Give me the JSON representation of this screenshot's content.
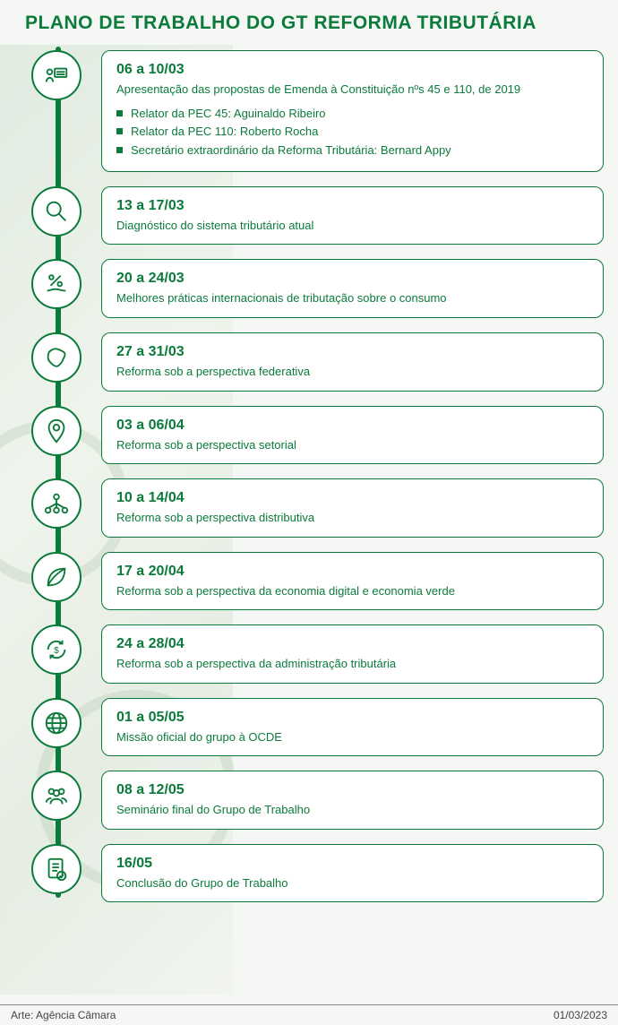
{
  "colors": {
    "primary": "#0b7a3b",
    "card_bg": "#ffffff",
    "card_border": "#0b7a3b",
    "spine": "#0b7a3b",
    "page_bg": "#f5f7f4",
    "bullet": "#0b7a3b",
    "footer_text": "#444444",
    "footer_rule": "#888888"
  },
  "title": "PLANO DE TRABALHO DO GT REFORMA TRIBUTÁRIA",
  "footer": {
    "credit": "Arte: Agência Câmara",
    "date": "01/03/2023"
  },
  "timeline": [
    {
      "icon": "presentation",
      "date": "06 a 10/03",
      "desc": "Apresentação das propostas de Emenda à Constituição nºs 45 e 110, de 2019",
      "bullets": [
        "Relator da PEC 45: Aguinaldo Ribeiro",
        "Relator da PEC 110: Roberto Rocha",
        "Secretário extraordinário da Reforma Tributária: Bernard Appy"
      ]
    },
    {
      "icon": "magnifier",
      "date": "13 a 17/03",
      "desc": "Diagnóstico do sistema tributário atual"
    },
    {
      "icon": "percent-hand",
      "date": "20 a 24/03",
      "desc": "Melhores práticas internacionais de tributação sobre o consumo"
    },
    {
      "icon": "brazil-map",
      "date": "27 a 31/03",
      "desc": "Reforma sob a perspectiva federativa"
    },
    {
      "icon": "pin",
      "date": "03 a 06/04",
      "desc": "Reforma sob a perspectiva setorial"
    },
    {
      "icon": "distribution",
      "date": "10 a 14/04",
      "desc": "Reforma sob a perspectiva distributiva"
    },
    {
      "icon": "leaf",
      "date": "17 a 20/04",
      "desc": "Reforma sob a perspectiva da economia digital e economia verde"
    },
    {
      "icon": "cycle-dollar",
      "date": "24 a 28/04",
      "desc": "Reforma sob a perspectiva da administração tributária"
    },
    {
      "icon": "globe",
      "date": "01 a 05/05",
      "desc": "Missão oficial do grupo à OCDE"
    },
    {
      "icon": "people",
      "date": "08 a 12/05",
      "desc": "Seminário final do Grupo de Trabalho"
    },
    {
      "icon": "document-check",
      "date": "16/05",
      "desc": "Conclusão do Grupo de Trabalho"
    }
  ]
}
